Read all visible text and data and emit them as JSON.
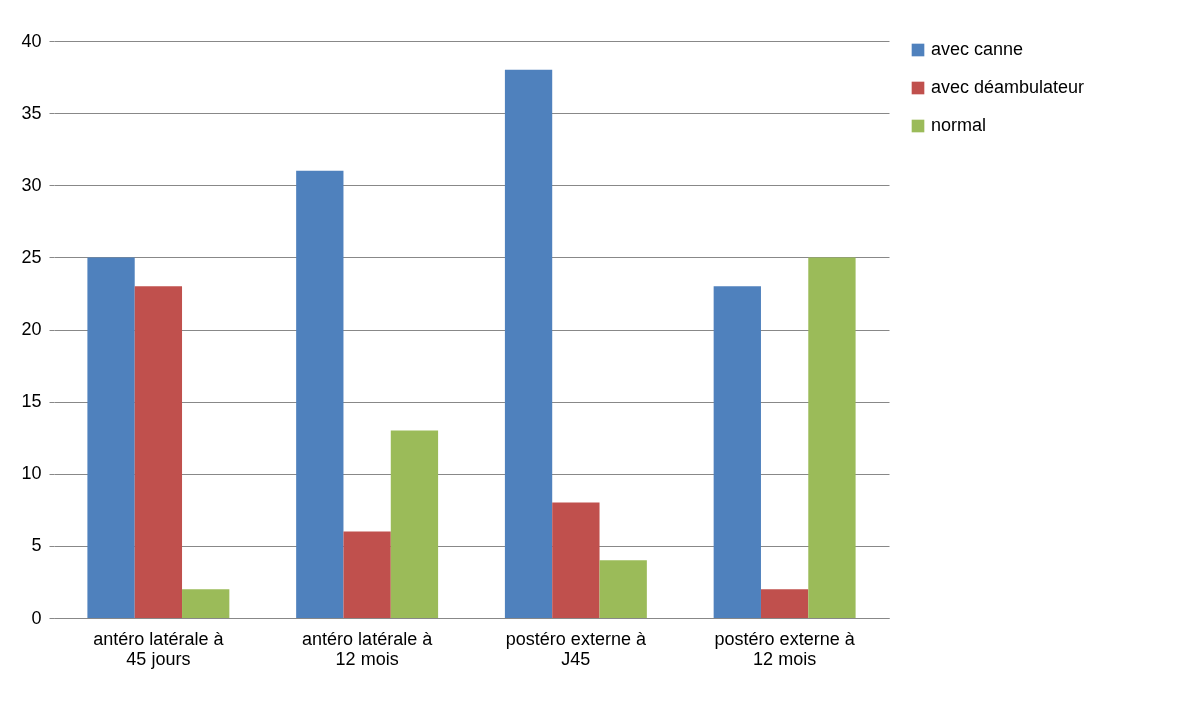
{
  "chart_data": {
    "type": "bar",
    "categories": [
      "antéro latérale à 45 jours",
      "antéro latérale à 12 mois",
      "postéro externe à J45",
      "postéro externe à 12 mois"
    ],
    "series": [
      {
        "name": "avec canne",
        "color": "#4f81bd",
        "values": [
          25,
          31,
          38,
          23
        ]
      },
      {
        "name": "avec déambulateur",
        "color": "#c0504d",
        "values": [
          23,
          6,
          8,
          2
        ]
      },
      {
        "name": "normal",
        "color": "#9bbb59",
        "values": [
          2,
          13,
          4,
          25
        ]
      }
    ],
    "ylim": [
      0,
      40
    ],
    "yticks": [
      0,
      5,
      10,
      15,
      20,
      25,
      30,
      35,
      40
    ],
    "grid": "y",
    "legend": "right"
  }
}
